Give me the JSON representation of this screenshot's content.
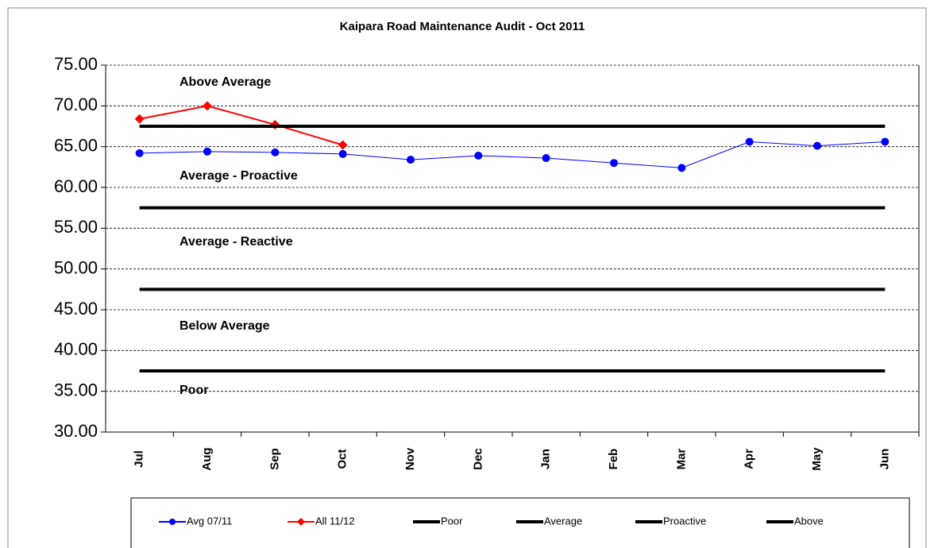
{
  "chart_data": {
    "type": "line",
    "title": "Kaipara Road Maintenance Audit - Oct 2011",
    "categories": [
      "Jul",
      "Aug",
      "Sep",
      "Oct",
      "Nov",
      "Dec",
      "Jan",
      "Feb",
      "Mar",
      "Apr",
      "May",
      "Jun"
    ],
    "series": [
      {
        "name": "Avg 07/11",
        "color": "#0000ff",
        "marker": "circle",
        "values": [
          64.2,
          64.4,
          64.3,
          64.1,
          63.4,
          63.9,
          63.6,
          63.0,
          62.4,
          65.6,
          65.1,
          65.6
        ]
      },
      {
        "name": "All 11/12",
        "color": "#ff0000",
        "marker": "diamond",
        "values": [
          68.4,
          70.0,
          67.7,
          65.2,
          null,
          null,
          null,
          null,
          null,
          null,
          null,
          null
        ]
      },
      {
        "name": "Poor",
        "color": "#000000",
        "values": [
          37.5,
          37.5,
          37.5,
          37.5,
          37.5,
          37.5,
          37.5,
          37.5,
          37.5,
          37.5,
          37.5,
          37.5
        ]
      },
      {
        "name": "Average",
        "color": "#000000",
        "values": [
          47.5,
          47.5,
          47.5,
          47.5,
          47.5,
          47.5,
          47.5,
          47.5,
          47.5,
          47.5,
          47.5,
          47.5
        ]
      },
      {
        "name": "Proactive",
        "color": "#000000",
        "values": [
          57.5,
          57.5,
          57.5,
          57.5,
          57.5,
          57.5,
          57.5,
          57.5,
          57.5,
          57.5,
          57.5,
          57.5
        ]
      },
      {
        "name": "Above",
        "color": "#000000",
        "values": [
          67.5,
          67.5,
          67.5,
          67.5,
          67.5,
          67.5,
          67.5,
          67.5,
          67.5,
          67.5,
          67.5,
          67.5
        ]
      }
    ],
    "annotations": [
      "Above Average",
      "Average - Proactive",
      "Average - Reactive",
      "Below Average",
      "Poor"
    ],
    "ylim": [
      30,
      75
    ],
    "yticks": [
      {
        "value": 30,
        "label": "30.00"
      },
      {
        "value": 35,
        "label": "35.00"
      },
      {
        "value": 40,
        "label": "40.00"
      },
      {
        "value": 45,
        "label": "45.00"
      },
      {
        "value": 50,
        "label": "50.00"
      },
      {
        "value": 55,
        "label": "55.00"
      },
      {
        "value": 60,
        "label": "60.00"
      },
      {
        "value": 65,
        "label": "65.00"
      },
      {
        "value": 70,
        "label": "70.00"
      },
      {
        "value": 75,
        "label": "75.00"
      }
    ],
    "grid": true,
    "legend": "bottom"
  }
}
